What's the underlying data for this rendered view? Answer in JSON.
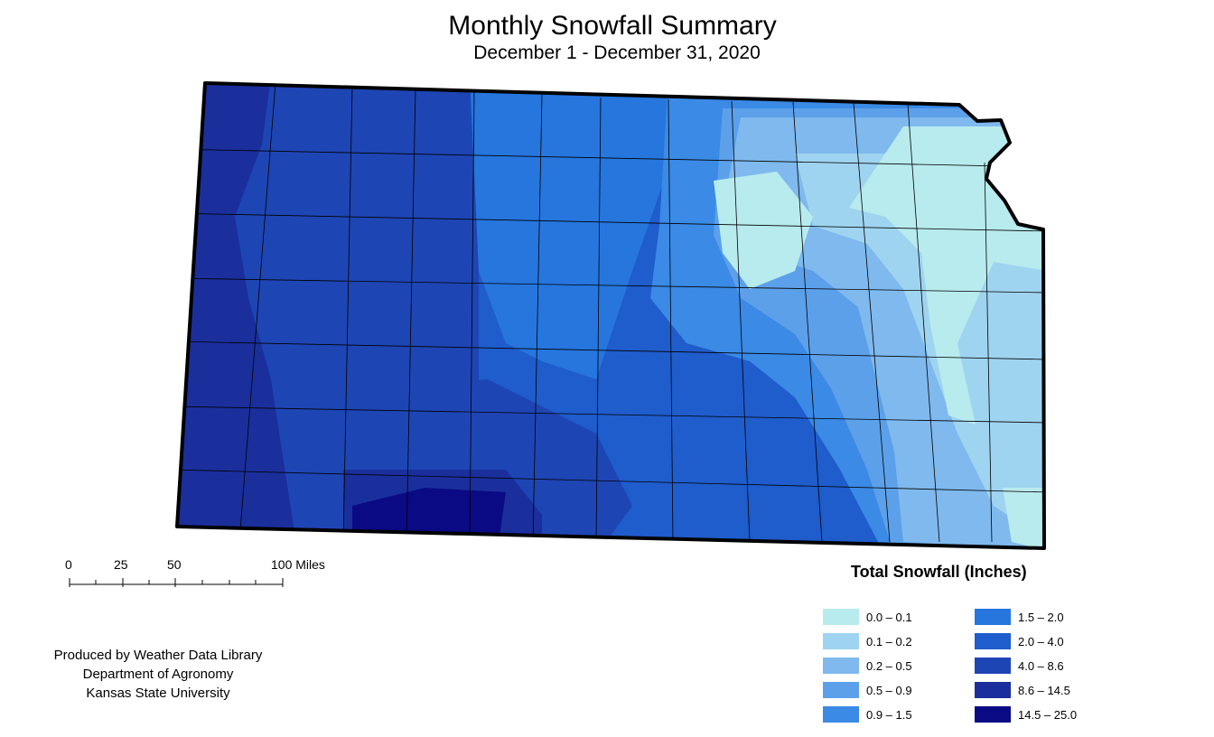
{
  "header": {
    "title": "Monthly Snowfall Summary",
    "subtitle": "December 1 - December 31, 2020"
  },
  "scale_bar": {
    "labels": [
      "0",
      "25",
      "50",
      "100 Miles"
    ],
    "unit": "Miles"
  },
  "legend": {
    "title": "Total Snowfall (Inches)",
    "classes": [
      {
        "label": "0.0 – 0.1",
        "color": "#b8ebee"
      },
      {
        "label": "0.1 – 0.2",
        "color": "#9fd4f0"
      },
      {
        "label": "0.2 – 0.5",
        "color": "#7fb9ee"
      },
      {
        "label": "0.5 – 0.9",
        "color": "#5ca0ea"
      },
      {
        "label": "0.9 – 1.5",
        "color": "#3a8ae6"
      },
      {
        "label": "1.5 – 2.0",
        "color": "#2676de"
      },
      {
        "label": "2.0 – 4.0",
        "color": "#1f5ccc"
      },
      {
        "label": "4.0 – 8.6",
        "color": "#1e45b4"
      },
      {
        "label": "8.6 – 14.5",
        "color": "#1a2f9c"
      },
      {
        "label": "14.5 – 25.0",
        "color": "#0a0a84"
      }
    ]
  },
  "credits": {
    "line1": "Produced by Weather Data Library",
    "line2": "Department of Agronomy",
    "line3": "Kansas State University"
  },
  "map": {
    "state": "Kansas",
    "pattern": "heaviest snowfall in southwest and west, lightest in northeast"
  }
}
